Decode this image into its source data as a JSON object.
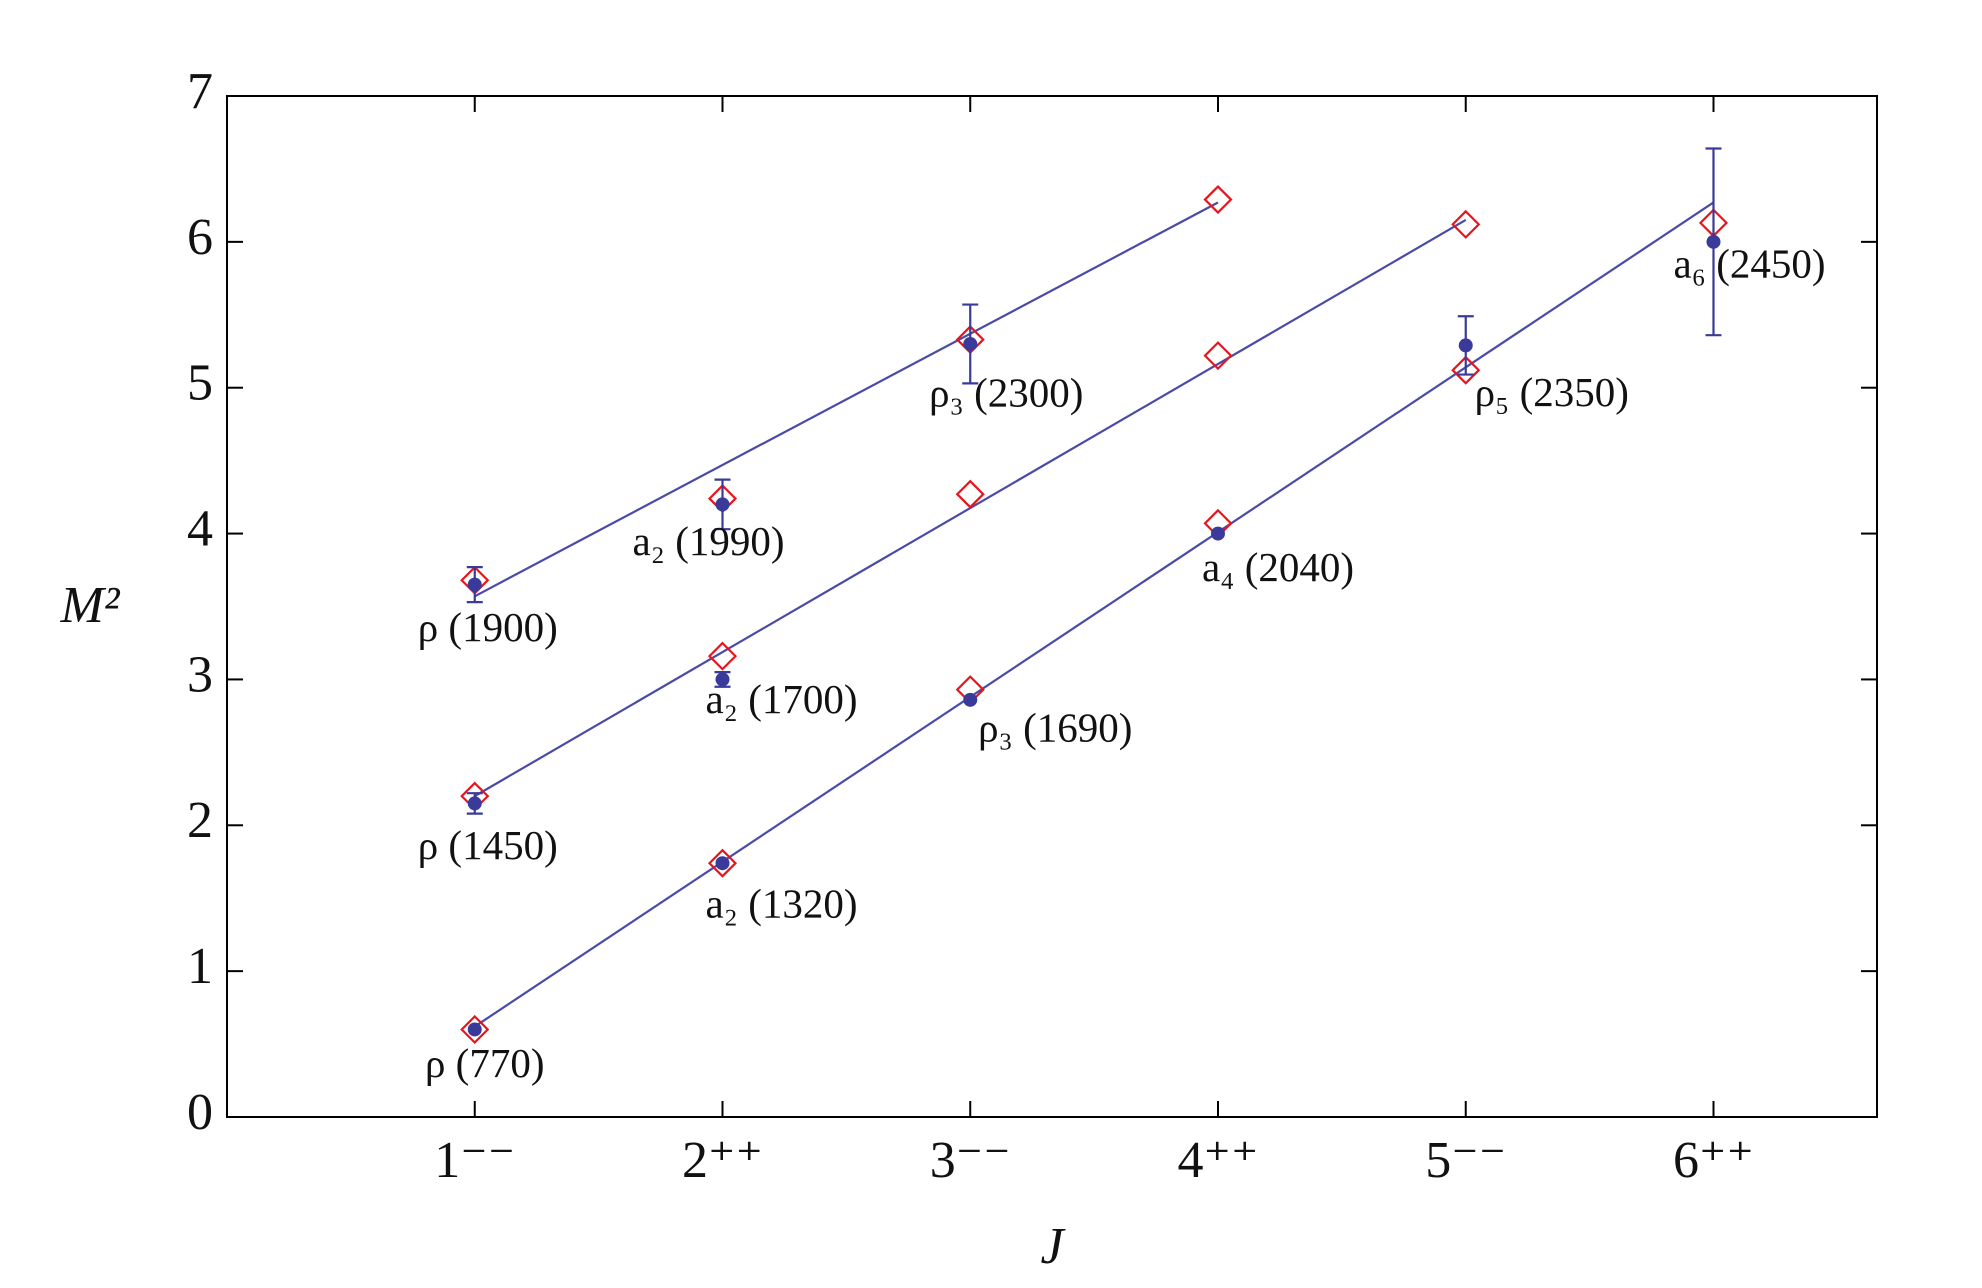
{
  "chart_data": {
    "type": "scatter",
    "x_label": "J",
    "y_label": "M²",
    "xlim": [
      0,
      6.66
    ],
    "ylim": [
      0,
      7
    ],
    "xticks": [
      {
        "value": 1,
        "label": "1⁻⁻"
      },
      {
        "value": 2,
        "label": "2⁺⁺"
      },
      {
        "value": 3,
        "label": "3⁻⁻"
      },
      {
        "value": 4,
        "label": "4⁺⁺"
      },
      {
        "value": 5,
        "label": "5⁻⁻"
      },
      {
        "value": 6,
        "label": "6⁺⁺"
      }
    ],
    "yticks": [
      0,
      1,
      2,
      3,
      4,
      5,
      6,
      7
    ],
    "series": [
      {
        "style": "line",
        "color": "#4a4aa8",
        "x": [
          1,
          6
        ],
        "values": [
          0.62,
          6.27
        ]
      },
      {
        "style": "line",
        "color": "#4a4aa8",
        "x": [
          1,
          5
        ],
        "values": [
          2.2,
          6.15
        ]
      },
      {
        "style": "line",
        "color": "#4a4aa8",
        "x": [
          1,
          4
        ],
        "values": [
          3.57,
          6.27
        ]
      },
      {
        "style": "diamond",
        "color": "#e8141c",
        "x": [
          1,
          2,
          3,
          4,
          5,
          6
        ],
        "values": [
          0.6,
          1.74,
          2.93,
          4.07,
          5.12,
          6.13
        ]
      },
      {
        "style": "diamond",
        "color": "#e8141c",
        "x": [
          1,
          2,
          3,
          4,
          5
        ],
        "values": [
          2.2,
          3.16,
          4.27,
          5.22,
          6.12
        ]
      },
      {
        "style": "diamond",
        "color": "#e8141c",
        "x": [
          1,
          2,
          3,
          4
        ],
        "values": [
          3.68,
          4.24,
          5.33,
          6.29
        ]
      },
      {
        "style": "dot",
        "color": "#3a3a9a",
        "x": [
          1,
          2,
          3,
          4,
          5,
          6
        ],
        "values": [
          0.6,
          1.74,
          2.86,
          4.0,
          5.29,
          6.0
        ],
        "errors": [
          null,
          null,
          null,
          null,
          0.2,
          0.64
        ],
        "point_labels": [
          "ρ (770)",
          "a₂ (1320)",
          "ρ₃ (1690)",
          "a₄ (2040)",
          "ρ₅ (2350)",
          "a₆ (2450)"
        ]
      },
      {
        "style": "dot",
        "color": "#3a3a9a",
        "x": [
          1,
          2
        ],
        "values": [
          2.15,
          3.0
        ],
        "errors": [
          0.07,
          0.05
        ],
        "point_labels": [
          "ρ (1450)",
          "a₂ (1700)"
        ]
      },
      {
        "style": "dot",
        "color": "#3a3a9a",
        "x": [
          1,
          2,
          3
        ],
        "values": [
          3.65,
          4.2,
          5.3
        ],
        "errors": [
          0.12,
          0.17,
          0.27
        ],
        "point_labels": [
          "ρ (1900)",
          "a₂ (1990)",
          "ρ₃ (2300)"
        ]
      }
    ]
  }
}
